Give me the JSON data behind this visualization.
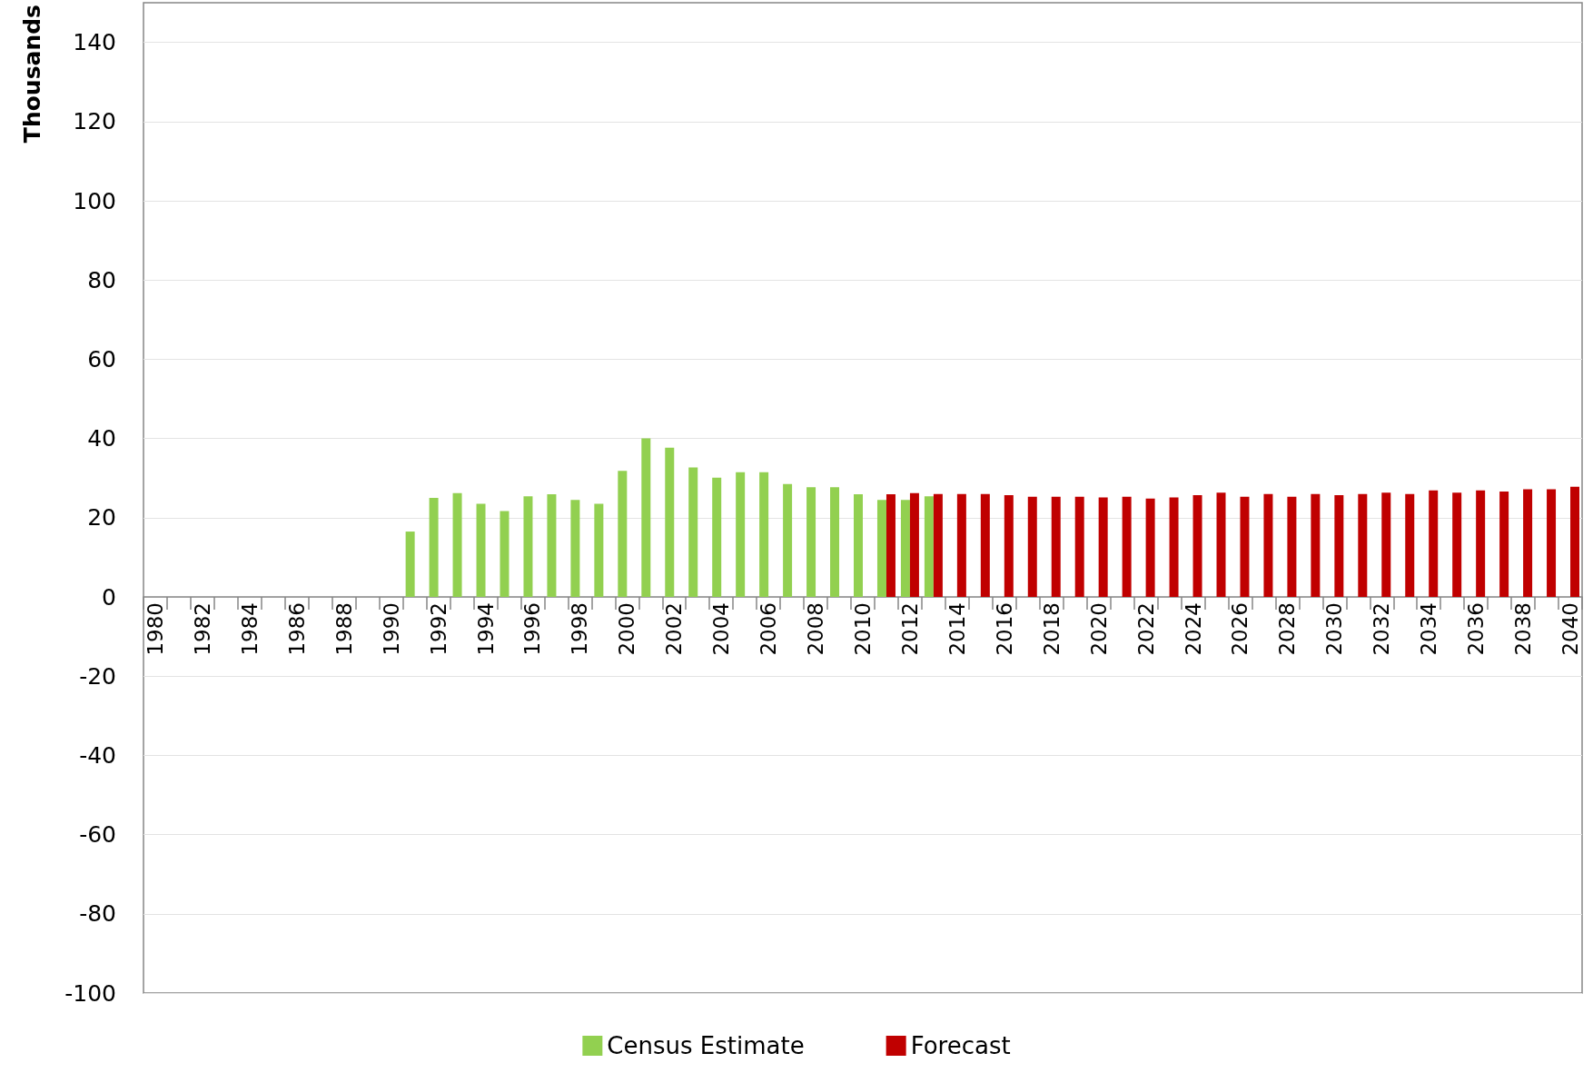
{
  "chart_data": {
    "type": "bar",
    "ylabel": "Thousands",
    "categories": [
      "1980",
      null,
      "1982",
      null,
      "1984",
      null,
      "1986",
      null,
      "1988",
      null,
      "1990",
      null,
      "1992",
      null,
      "1994",
      null,
      "1996",
      null,
      "1998",
      null,
      "2000",
      null,
      "2002",
      null,
      "2004",
      null,
      "2006",
      null,
      "2008",
      null,
      "2010",
      null,
      "2012",
      null,
      "2014",
      null,
      "2016",
      null,
      "2018",
      null,
      "2020",
      null,
      "2022",
      null,
      "2024",
      null,
      "2026",
      null,
      "2028",
      null,
      "2030",
      null,
      "2032",
      null,
      "2034",
      null,
      "2036",
      null,
      "2038",
      null,
      "2040"
    ],
    "series": [
      {
        "name": "Census Estimate",
        "color": "#92d050",
        "values": [
          null,
          null,
          null,
          null,
          null,
          null,
          null,
          null,
          null,
          null,
          null,
          16.5,
          25.0,
          26.2,
          23.5,
          21.7,
          25.4,
          25.9,
          24.5,
          23.5,
          31.8,
          40.0,
          37.7,
          32.7,
          30.1,
          31.5,
          31.5,
          28.5,
          27.7,
          27.7,
          25.9,
          24.5,
          24.5,
          25.4,
          null,
          null,
          null,
          null,
          null,
          null,
          null,
          null,
          null,
          null,
          null,
          null,
          null,
          null,
          null,
          null,
          null,
          null,
          null,
          null,
          null,
          null,
          null,
          null,
          null,
          null,
          null
        ]
      },
      {
        "name": "Forecast",
        "color": "#c00000",
        "values": [
          null,
          null,
          null,
          null,
          null,
          null,
          null,
          null,
          null,
          null,
          null,
          null,
          null,
          null,
          null,
          null,
          null,
          null,
          null,
          null,
          null,
          null,
          null,
          null,
          null,
          null,
          null,
          null,
          null,
          null,
          null,
          25.9,
          26.2,
          26.0,
          26.0,
          26.0,
          25.7,
          25.3,
          25.3,
          25.3,
          25.1,
          25.3,
          24.8,
          25.1,
          25.7,
          26.3,
          25.3,
          26.0,
          25.3,
          26.0,
          25.7,
          26.0,
          26.3,
          26.0,
          26.9,
          26.3,
          26.9,
          26.6,
          27.2,
          27.2,
          27.8
        ]
      }
    ],
    "ylim": [
      -100,
      150
    ],
    "yticks": [
      -100,
      -80,
      -60,
      -40,
      -20,
      0,
      20,
      40,
      60,
      80,
      100,
      120,
      140
    ],
    "grid": "y",
    "legend": "bottom"
  }
}
